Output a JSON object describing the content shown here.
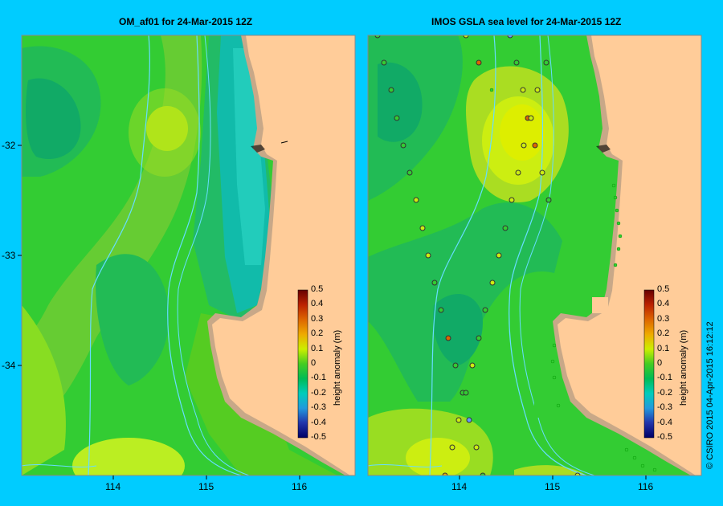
{
  "panels": [
    {
      "title": "OM_af01  for 24-Mar-2015 12Z"
    },
    {
      "title": "IMOS GSLA sea level  for 24-Mar-2015 12Z"
    }
  ],
  "axes": {
    "y_ticks": [
      "-32",
      "-33",
      "-34"
    ],
    "x_ticks": [
      "114",
      "115",
      "116"
    ]
  },
  "colorbar": {
    "label": "height anomaly (m)",
    "ticks": [
      "0.5",
      "0.4",
      "0.3",
      "0.2",
      "0.1",
      "0",
      "-0.1",
      "-0.2",
      "-0.3",
      "-0.4",
      "-0.5"
    ]
  },
  "credit": "© CSIRO 2015   04-Apr-2015 16:12:12",
  "colors": {
    "background": "#00ccff",
    "land": "#ffcc99",
    "coast_sand": "#c8a888",
    "contour_line": "#66ddff"
  }
}
